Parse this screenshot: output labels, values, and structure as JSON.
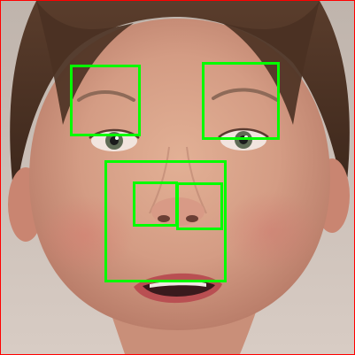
{
  "image": {
    "subject": "face",
    "frame_color": "#ff0000",
    "box_color": "#00ff00"
  },
  "detections": [
    {
      "label": "",
      "name": "left-eye-region"
    },
    {
      "label": "",
      "name": "right-eye-region"
    },
    {
      "label": "",
      "name": "nose-mouth-region"
    },
    {
      "label": "",
      "name": "left-nostril-region"
    },
    {
      "label": "",
      "name": "right-nostril-region"
    }
  ]
}
